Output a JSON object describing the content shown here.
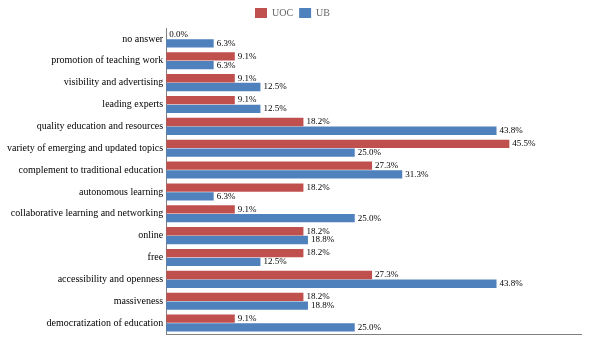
{
  "chart_data": {
    "type": "bar",
    "orientation": "horizontal",
    "categories": [
      "no answer",
      "promotion of teaching work",
      "visibility and advertising",
      "leading experts",
      "quality education and resources",
      "variety of emerging and updated topics",
      "complement to traditional education",
      "autonomous learning",
      "collaborative learning and networking",
      "online",
      "free",
      "accessibility and openness",
      "massiveness",
      "democratization of education"
    ],
    "series": [
      {
        "name": "UOC",
        "color": "#c0504d",
        "values": [
          0.0,
          9.1,
          9.1,
          9.1,
          18.2,
          45.5,
          27.3,
          18.2,
          9.1,
          18.2,
          18.2,
          27.3,
          18.2,
          9.1
        ],
        "value_labels": [
          "0.0%",
          "9.1%",
          "9.1%",
          "9.1%",
          "18.2%",
          "45.5%",
          "27.3%",
          "18.2%",
          "9.1%",
          "18.2%",
          "18.2%",
          "27.3%",
          "18.2%",
          "9.1%"
        ]
      },
      {
        "name": "UB",
        "color": "#4f81bd",
        "values": [
          6.3,
          6.3,
          12.5,
          12.5,
          43.8,
          25.0,
          31.3,
          6.3,
          25.0,
          18.8,
          12.5,
          43.8,
          18.8,
          25.0
        ],
        "value_labels": [
          "6.3%",
          "6.3%",
          "12.5%",
          "12.5%",
          "43.8%",
          "25.0%",
          "31.3%",
          "6.3%",
          "25.0%",
          "18.8%",
          "12.5%",
          "43.8%",
          "18.8%",
          "25.0%"
        ]
      }
    ],
    "xlim": [
      0,
      55
    ],
    "xticks": [],
    "tick_labels": "y",
    "data_labels": true,
    "legend": "top",
    "grid": false
  }
}
